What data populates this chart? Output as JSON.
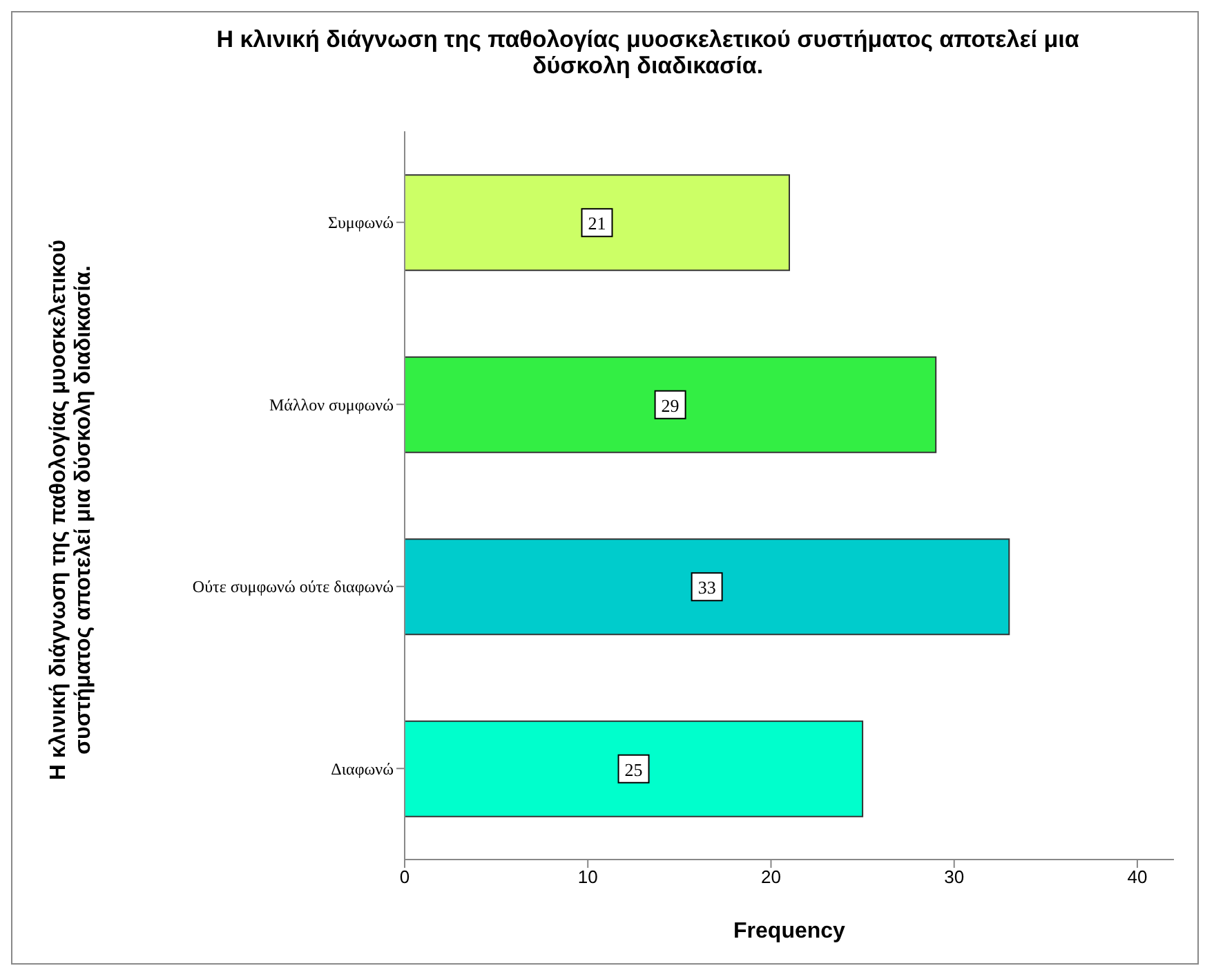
{
  "chart_data": {
    "type": "bar",
    "orientation": "horizontal",
    "title": "Η κλινική διάγνωση της παθολογίας μυοσκελετικού συστήματος αποτελεί μια δύσκολη διαδικασία.",
    "xlabel": "Frequency",
    "ylabel": "Η κλινική διάγνωση της παθολογίας μυοσκελετικού συστήματος αποτελεί μια δύσκολη διαδικασία.",
    "categories": [
      "Συμφωνώ",
      "Μάλλον συμφωνώ",
      "Ούτε συμφωνώ ούτε διαφωνώ",
      "Διαφωνώ"
    ],
    "values": [
      21,
      29,
      33,
      25
    ],
    "colors": [
      "#ccff66",
      "#33ee44",
      "#00cccc",
      "#00ffcc"
    ],
    "xlim": [
      0,
      42
    ],
    "xticks": [
      0,
      10,
      20,
      30,
      40
    ],
    "data_labels": true
  }
}
